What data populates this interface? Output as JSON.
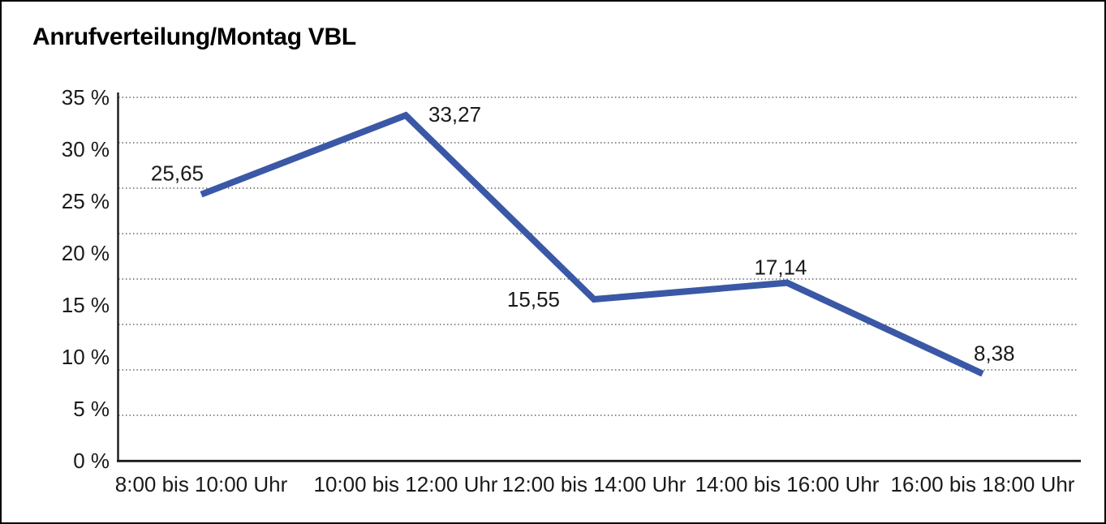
{
  "chart_data": {
    "type": "line",
    "title": "Anrufverteilung/Montag VBL",
    "categories": [
      "8:00 bis 10:00 Uhr",
      "10:00 bis 12:00 Uhr",
      "12:00 bis 14:00 Uhr",
      "14:00 bis 16:00 Uhr",
      "16:00 bis 18:00 Uhr"
    ],
    "values": [
      25.65,
      33.27,
      15.55,
      17.14,
      8.38
    ],
    "value_labels": [
      "25,65",
      "33,27",
      "15,55",
      "17,14",
      "8,38"
    ],
    "y_tick_labels": [
      "35 %",
      "30 %",
      "25 %",
      "20 %",
      "15 %",
      "10 %",
      "5 %",
      "0 %"
    ],
    "ylim": [
      0,
      35
    ],
    "xlabel": "",
    "ylabel": "",
    "legend_position": "none",
    "grid": "horizontal-dotted",
    "line_color": "#3A58A6",
    "axis_color": "#1a1a1a",
    "gridline_color": "#3d3d3d",
    "text_color": "#1a1a1a",
    "background_color": "#ffffff"
  }
}
